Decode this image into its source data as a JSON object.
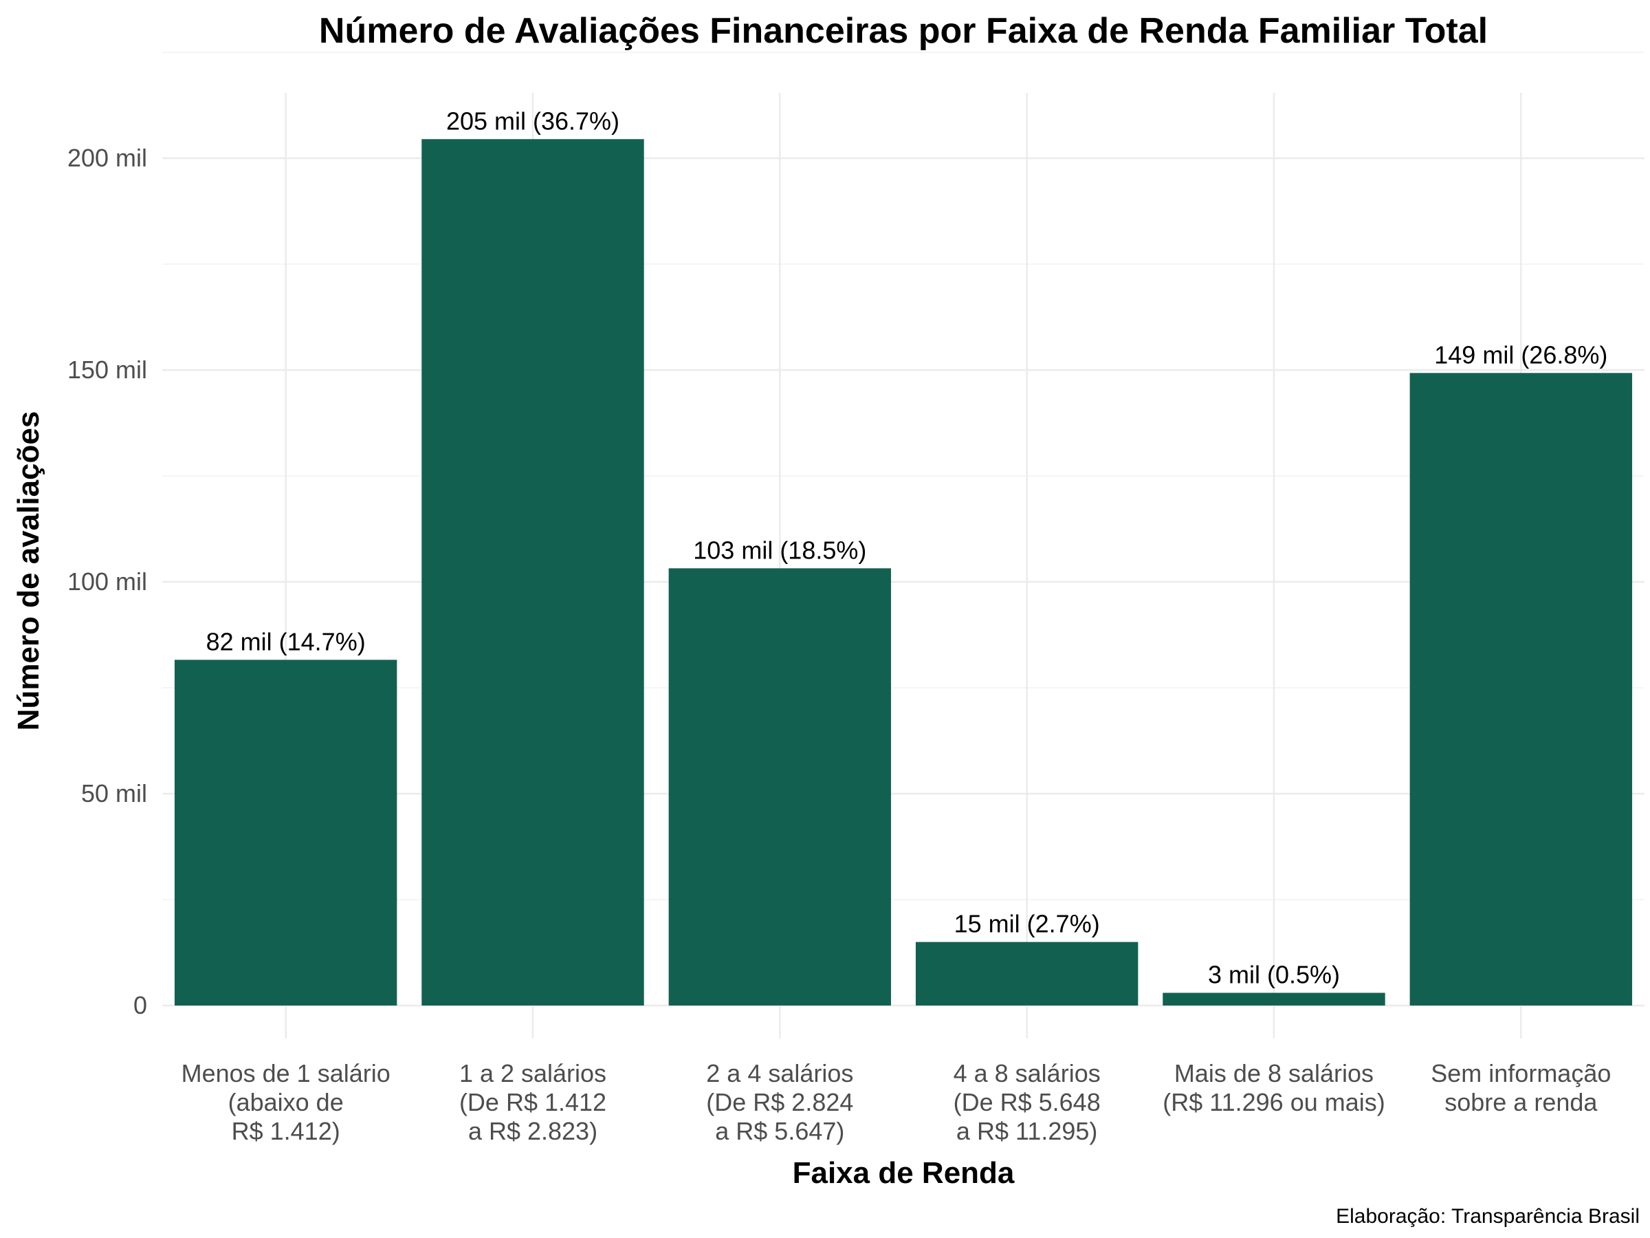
{
  "chart_data": {
    "type": "bar",
    "title": "Número de Avaliações Financeiras por Faixa de Renda Familiar Total",
    "xlabel": "Faixa de Renda",
    "ylabel": "Número de avaliações",
    "caption": "Elaboração: Transparência Brasil",
    "categories": [
      [
        "Menos de 1 salário",
        "(abaixo de",
        "R$ 1.412)"
      ],
      [
        "1 a 2 salários",
        "(De R$ 1.412",
        "a R$ 2.823)"
      ],
      [
        "2 a 4 salários",
        "(De R$ 2.824",
        "a R$ 5.647)"
      ],
      [
        "4 a 8 salários",
        "(De R$ 5.648",
        "a R$ 11.295)"
      ],
      [
        "Mais de 8 salários",
        "(R$ 11.296 ou mais)"
      ],
      [
        "Sem informação",
        "sobre a renda"
      ]
    ],
    "values": [
      81600,
      204500,
      103200,
      15000,
      3000,
      149300
    ],
    "data_labels": [
      "82 mil (14.7%)",
      "205 mil (36.7%)",
      "103 mil (18.5%)",
      "15 mil (2.7%)",
      "3 mil (0.5%)",
      "149 mil (26.8%)"
    ],
    "ylim": [
      0,
      215000
    ],
    "y_ticks": [
      0,
      50000,
      100000,
      150000,
      200000
    ],
    "y_tick_labels": [
      "0",
      "50 mil",
      "100 mil",
      "150 mil",
      "200 mil"
    ],
    "grid": true,
    "legend": "none",
    "colors": {
      "bar": "#126150",
      "grid": "#ebebeb",
      "tick_text": "#4d4d4d"
    }
  }
}
